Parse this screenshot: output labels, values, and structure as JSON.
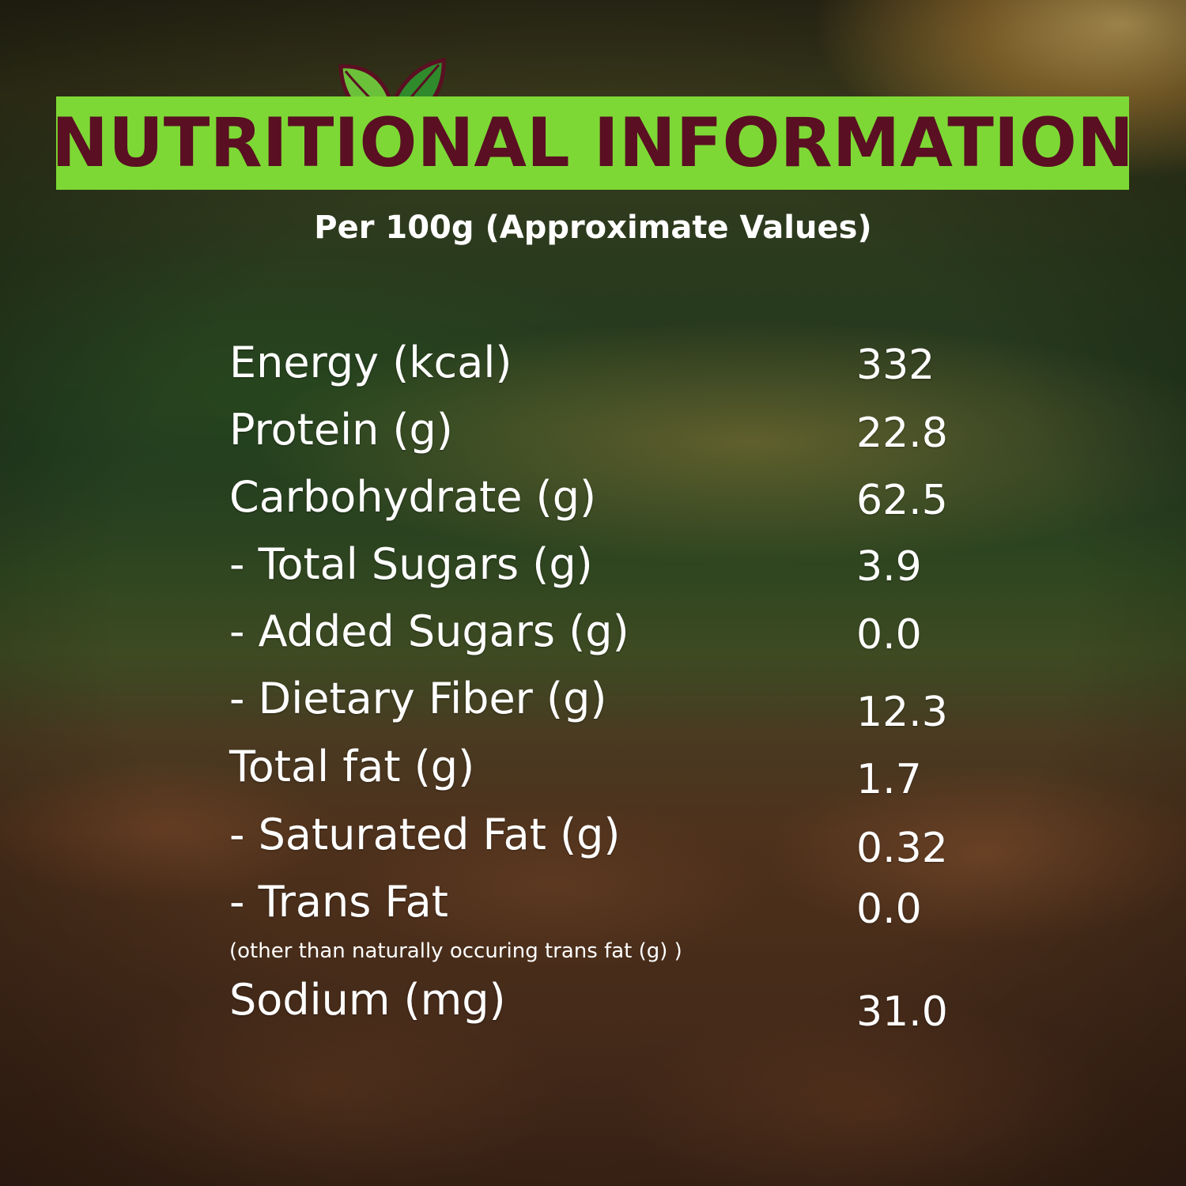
{
  "header": {
    "title": "NUTRITIONAL INFORMATION",
    "subtitle": "Per 100g (Approximate Values)",
    "title_band_color": "#7dd835",
    "title_text_color": "#5a0f22",
    "logo_icon": "leaf-pair-icon"
  },
  "nutrients": [
    {
      "label": "Energy (kcal)",
      "value": "332"
    },
    {
      "label": "Protein (g)",
      "value": "22.8"
    },
    {
      "label": "Carbohydrate (g)",
      "value": "62.5"
    },
    {
      "label": "- Total Sugars (g)",
      "value": "3.9"
    },
    {
      "label": "- Added Sugars (g)",
      "value": "0.0"
    },
    {
      "label": "- Dietary Fiber (g)",
      "value": "12.3"
    },
    {
      "label": "Total fat (g)",
      "value": "1.7"
    },
    {
      "label": "- Saturated Fat (g)",
      "value": "0.32"
    },
    {
      "label": "- Trans Fat",
      "value": "0.0",
      "note": "(other than naturally occuring trans fat (g) )"
    },
    {
      "label": "Sodium (mg)",
      "value": "31.0"
    }
  ]
}
